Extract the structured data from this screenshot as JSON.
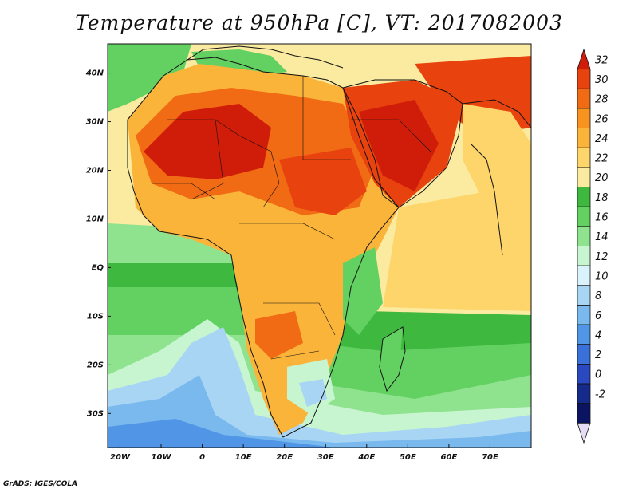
{
  "title": "Temperature at 950hPa [C], VT: 2017082003",
  "credit": "GrADS: IGES/COLA",
  "map": {
    "lat_labels": [
      "40N",
      "30N",
      "20N",
      "10N",
      "EQ",
      "10S",
      "20S",
      "30S"
    ],
    "lon_labels": [
      "20W",
      "10W",
      "0",
      "10E",
      "20E",
      "30E",
      "40E",
      "50E",
      "60E",
      "70E"
    ],
    "extent": {
      "lon_min": -23,
      "lon_max": 80,
      "lat_min": -37,
      "lat_max": 46
    }
  },
  "colorbar": {
    "labels": [
      "32",
      "30",
      "28",
      "26",
      "24",
      "22",
      "20",
      "18",
      "16",
      "14",
      "12",
      "10",
      "8",
      "6",
      "4",
      "2",
      "0",
      "-2"
    ],
    "colors": [
      "#d01d0a",
      "#e8420f",
      "#f06b14",
      "#f7931e",
      "#fbb43a",
      "#fdd56b",
      "#fbeba0",
      "#3eb83e",
      "#62d162",
      "#8fe38f",
      "#c6f5d0",
      "#d9f2fb",
      "#a9d5f5",
      "#79b9ee",
      "#5196e6",
      "#3a70d9",
      "#2a48c0",
      "#162a8c",
      "#0b1460",
      "#e6dcf5"
    ]
  }
}
